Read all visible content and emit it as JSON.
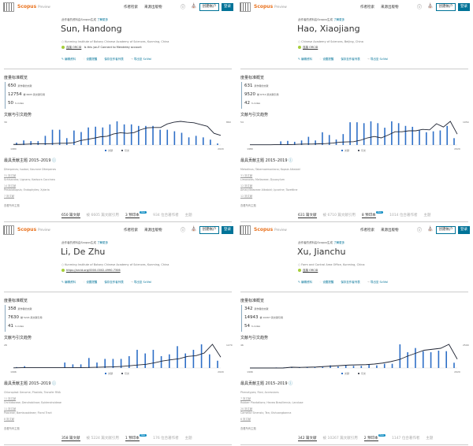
{
  "common": {
    "brand": "Scopus",
    "brand_sub": "Preview",
    "nav": [
      "作者检索",
      "来源出版物"
    ],
    "create_account": "创建帐户",
    "login": "登录",
    "breadcrumb": "此作者的资料由Scopus生成",
    "learn_more": "了解更多",
    "actions": [
      "编辑资料",
      "设置提醒",
      "保存至作者列表",
      "导出至 SciVal"
    ],
    "metrics_title": "度量标准概览",
    "chart_title": "文献与引文趋势",
    "legend_docs": "文献",
    "legend_cites": "引文",
    "topics_title": "最具贡献主题 2015–2019",
    "all_topics": "查看所有主题",
    "new_badge": "New",
    "tab_topics": "主题",
    "colors": {
      "accent": "#007398",
      "bar": "#2e6fc7",
      "line": "#1f2433",
      "brand": "#e9711c"
    }
  },
  "profiles": [
    {
      "name": "Sun, Handong",
      "affiliation": "Kunming Institute of Botany Chinese Academy of Sciences, Kunming, China",
      "orcid": "连接 ORCID",
      "mendeley": "Is this you? Connect to Mendeley account",
      "docs": "650",
      "docs_label": "篇作者的文献",
      "citations": "12754",
      "citations_label": "被 6605 篇文献引用",
      "h": "50",
      "h_label": "h-index",
      "topics": [
        {
          "name": "Diterpenes; Isodon; Kaurane Diterpenes",
          "count": "31 篇文献"
        },
        {
          "name": "Schisandra; Lignans; Kadsura Coccinea",
          "count": "14 篇文献"
        },
        {
          "name": "Pestalotiopsis; Endophytes; Xylaria",
          "count": "7 篇文献"
        }
      ],
      "tabs": [
        "650 篇文献",
        "被 6605 篇文献引用",
        "3 预印本",
        "934 位合著作者"
      ],
      "chart_data": {
        "type": "bar+line",
        "x_start": "1980",
        "x_end": "2020",
        "y_left_max": "39",
        "y_right_max": "860",
        "docs": [
          3,
          6,
          5,
          5,
          12,
          20,
          20,
          9,
          19,
          17,
          23,
          24,
          23,
          27,
          31,
          27,
          27,
          25,
          25,
          25,
          20,
          20,
          18,
          16,
          10,
          12,
          10,
          7,
          2
        ],
        "cites": [
          20,
          20,
          30,
          40,
          40,
          40,
          50,
          60,
          60,
          80,
          150,
          190,
          230,
          280,
          300,
          380,
          420,
          400,
          420,
          520,
          590,
          600,
          600,
          720,
          780,
          810,
          780,
          760,
          700,
          640,
          400,
          330
        ]
      }
    },
    {
      "name": "Hao, Xiaojiang",
      "affiliation": "Chinese Academy of Sciences, Beijing, China",
      "orcid": "连接 ORCID",
      "mendeley": "",
      "docs": "631",
      "docs_label": "篇作者的文献",
      "citations": "9520",
      "citations_label": "被 6710 篇文献引用",
      "h": "42",
      "h_label": "h-index",
      "topics": [
        {
          "name": "Melodinus; Tabernaemontana; Kopsia Alkaloid",
          "count": "31 篇文献"
        },
        {
          "name": "Limonoids; Meliaceae; Dysoxylum",
          "count": "12 篇文献"
        },
        {
          "name": "Amaryllidaceae Alkaloid; Lycorine; Tazettine",
          "count": "12 篇文献"
        }
      ],
      "tabs": [
        "631 篇文献",
        "被 6710 篇文献引用",
        "8 预印本",
        "1014 位合著作者"
      ],
      "chart_data": {
        "type": "bar+line",
        "x_start": "1980",
        "x_end": "2020",
        "y_left_max": "54",
        "y_right_max": "1054",
        "docs": [
          0,
          0,
          0,
          0,
          8,
          9,
          7,
          10,
          18,
          10,
          28,
          22,
          12,
          24,
          50,
          50,
          48,
          52,
          48,
          38,
          52,
          48,
          42,
          40,
          32,
          28,
          30,
          32,
          42,
          15
        ],
        "cites": [
          10,
          10,
          10,
          10,
          20,
          20,
          20,
          30,
          40,
          40,
          50,
          60,
          80,
          120,
          130,
          140,
          200,
          300,
          360,
          300,
          420,
          560,
          560,
          600,
          600,
          660,
          640,
          900,
          760,
          1000,
          460
        ]
      }
    },
    {
      "name": "Li, De Zhu",
      "affiliation": "Kunming Institute of Botany Chinese Academy of Sciences, Kunming, China",
      "orcid": "https://orcid.org/0000-0002-4990-7306",
      "mendeley": "",
      "docs": "358",
      "docs_label": "篇作者的文献",
      "citations": "7630",
      "citations_label": "被 5224 篇文献引用",
      "h": "41",
      "h_label": "h-index",
      "topics": [
        {
          "name": "Chloroplast Genome; Plastids; Transfer RNA",
          "count": "11 篇文献"
        },
        {
          "name": "Orchidaceae; Dendrobiinae; Epidendroideae",
          "count": "11 篇文献"
        },
        {
          "name": "Poaceae; Bambusoideae; Floral Tract",
          "count": "8 篇文献"
        }
      ],
      "tabs": [
        "358 篇文献",
        "被 5224 篇文献引用",
        "1 预印本",
        "176 位合著作者"
      ],
      "chart_data": {
        "type": "bar+line",
        "x_start": "1996",
        "x_end": "2020",
        "y_left_max": "28",
        "y_right_max": "1270",
        "docs": [
          1,
          2,
          0,
          0,
          0,
          0,
          6,
          4,
          4,
          11,
          6,
          10,
          10,
          10,
          13,
          20,
          16,
          20,
          13,
          15,
          24,
          16,
          20,
          26,
          15,
          8
        ],
        "cites": [
          10,
          20,
          20,
          20,
          20,
          20,
          20,
          20,
          20,
          30,
          40,
          50,
          60,
          80,
          120,
          160,
          200,
          280,
          380,
          440,
          500,
          620,
          660,
          800,
          1270,
          580
        ]
      }
    },
    {
      "name": "Xu, Jianchu",
      "affiliation": "Farm and Control Area Office, Kunming, China",
      "orcid": "连接 ORCID",
      "mendeley": "",
      "docs": "342",
      "docs_label": "篇作者的文献",
      "citations": "14943",
      "citations_label": "被 10267 篇文献引用",
      "h": "54",
      "h_label": "h-index",
      "topics": [
        {
          "name": "Phenotypes; Rice; Accessions",
          "count": "7 篇文献"
        },
        {
          "name": "Rubber Plantations; Hevea Brasiliensis; Landuse",
          "count": "20 篇文献"
        },
        {
          "name": "Camellia Sinensis; Tea; Xishuangbanna",
          "count": "6 篇文献"
        }
      ],
      "tabs": [
        "342 篇文献",
        "被 10267 篇文献引用",
        "2 预印本",
        "1147 位合著作者"
      ],
      "chart_data": {
        "type": "bar+line",
        "x_start": "1996",
        "x_end": "2020",
        "y_left_max": "46",
        "y_right_max": "2500",
        "docs": [
          0,
          0,
          0,
          1,
          1,
          2,
          1,
          1,
          2,
          2,
          5,
          3,
          6,
          4,
          4,
          6,
          5,
          8,
          8,
          45,
          30,
          38,
          32,
          30,
          33,
          32,
          10
        ],
        "cites": [
          0,
          0,
          0,
          0,
          0,
          80,
          60,
          80,
          100,
          150,
          200,
          250,
          300,
          320,
          340,
          400,
          500,
          650,
          850,
          1200,
          1500,
          1800,
          1900,
          2000,
          2400,
          900
        ]
      }
    }
  ]
}
